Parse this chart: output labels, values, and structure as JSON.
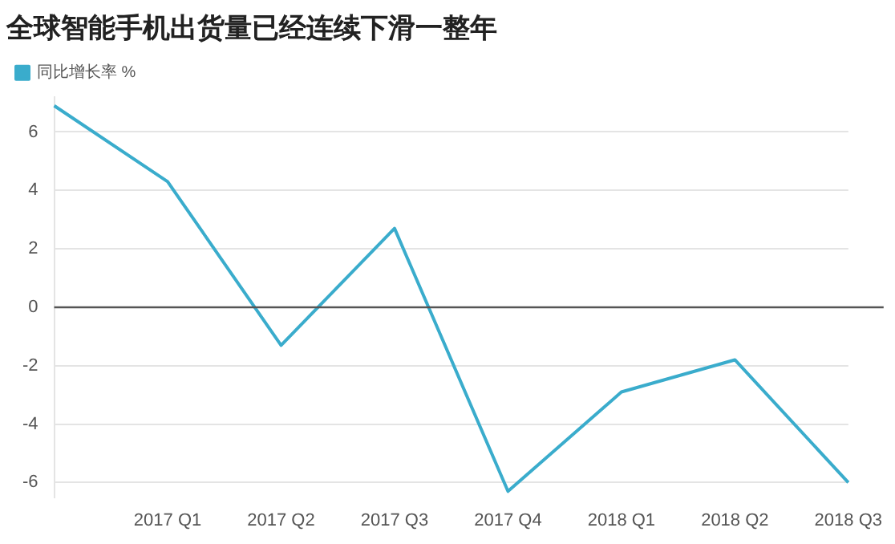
{
  "chart_data": {
    "type": "line",
    "title": "全球智能手机出货量已经连续下滑一整年",
    "categories": [
      null,
      "2017 Q1",
      "2017 Q2",
      "2017 Q3",
      "2017 Q4",
      "2018 Q1",
      "2018 Q2",
      "2018 Q3"
    ],
    "series": [
      {
        "name": "同比增长率 %",
        "color": "#3aaccc",
        "values": [
          6.9,
          4.3,
          -1.3,
          2.7,
          -6.3,
          -2.9,
          -1.8,
          -6.0
        ]
      }
    ],
    "ylim": [
      -6.5,
      7.2
    ],
    "yticks": [
      -6,
      -4,
      -2,
      0,
      2,
      4,
      6
    ],
    "grid": "y",
    "legend": "top left",
    "marker": "none",
    "ref_lines": [
      {
        "axis": "y",
        "value": 0,
        "color": "#555555"
      }
    ]
  }
}
